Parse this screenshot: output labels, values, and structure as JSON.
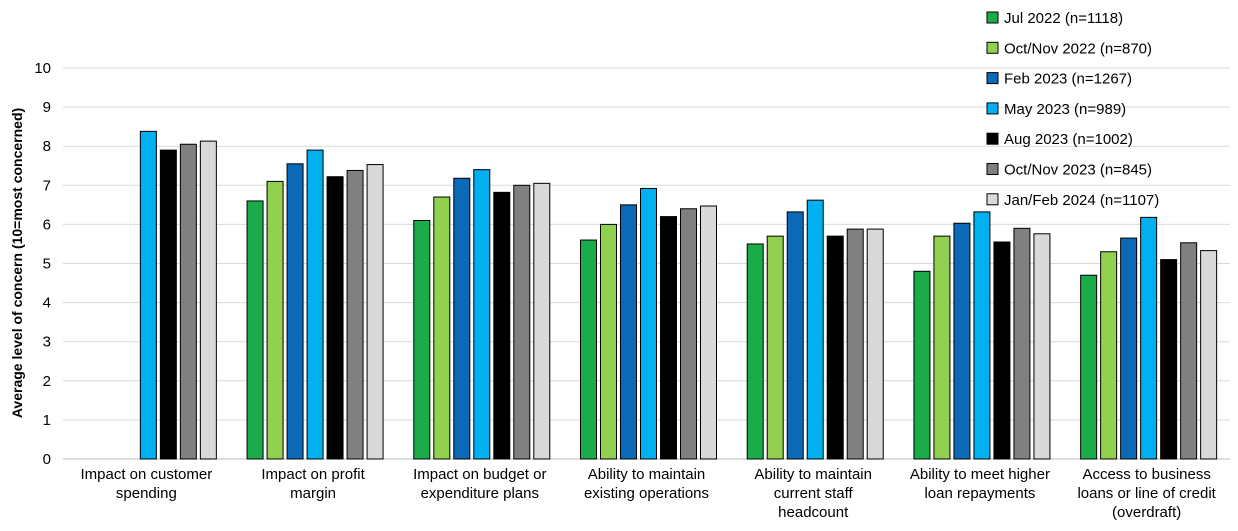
{
  "chart_data": {
    "type": "bar",
    "title": "",
    "xlabel": "",
    "ylabel": "Average level of concern (10=most concerned)",
    "ylim": [
      0,
      10
    ],
    "yticks": [
      0,
      1,
      2,
      3,
      4,
      5,
      6,
      7,
      8,
      9,
      10
    ],
    "grid": true,
    "legend_position": "top-right",
    "categories": [
      [
        "Impact on customer",
        "spending"
      ],
      [
        "Impact on profit",
        "margin"
      ],
      [
        "Impact on budget or",
        "expenditure plans"
      ],
      [
        "Ability to maintain",
        "existing operations"
      ],
      [
        "Ability to maintain",
        "current staff",
        "headcount"
      ],
      [
        "Ability to meet higher",
        "loan repayments"
      ],
      [
        "Access to business",
        "loans or line of credit",
        "(overdraft)"
      ]
    ],
    "series": [
      {
        "name": "Jul 2022 (n=1118)",
        "color": "#1aab4b",
        "values": [
          null,
          6.6,
          6.1,
          5.6,
          5.5,
          4.8,
          4.7
        ]
      },
      {
        "name": "Oct/Nov 2022 (n=870)",
        "color": "#92d050",
        "values": [
          null,
          7.1,
          6.7,
          6.0,
          5.7,
          5.7,
          5.3
        ]
      },
      {
        "name": "Feb 2023 (n=1267)",
        "color": "#0b69b8",
        "values": [
          null,
          7.55,
          7.18,
          6.5,
          6.32,
          6.03,
          5.65
        ]
      },
      {
        "name": "May 2023 (n=989)",
        "color": "#00b0f0",
        "values": [
          8.38,
          7.9,
          7.4,
          6.92,
          6.62,
          6.32,
          6.18
        ]
      },
      {
        "name": "Aug 2023 (n=1002)",
        "color": "#000000",
        "values": [
          7.9,
          7.22,
          6.82,
          6.2,
          5.7,
          5.55,
          5.1
        ]
      },
      {
        "name": "Oct/Nov 2023 (n=845)",
        "color": "#808080",
        "values": [
          8.05,
          7.38,
          7.0,
          6.4,
          5.88,
          5.9,
          5.53
        ]
      },
      {
        "name": "Jan/Feb 2024 (n=1107)",
        "color": "#d9d9d9",
        "values": [
          8.13,
          7.53,
          7.05,
          6.47,
          5.88,
          5.76,
          5.33
        ]
      }
    ]
  }
}
